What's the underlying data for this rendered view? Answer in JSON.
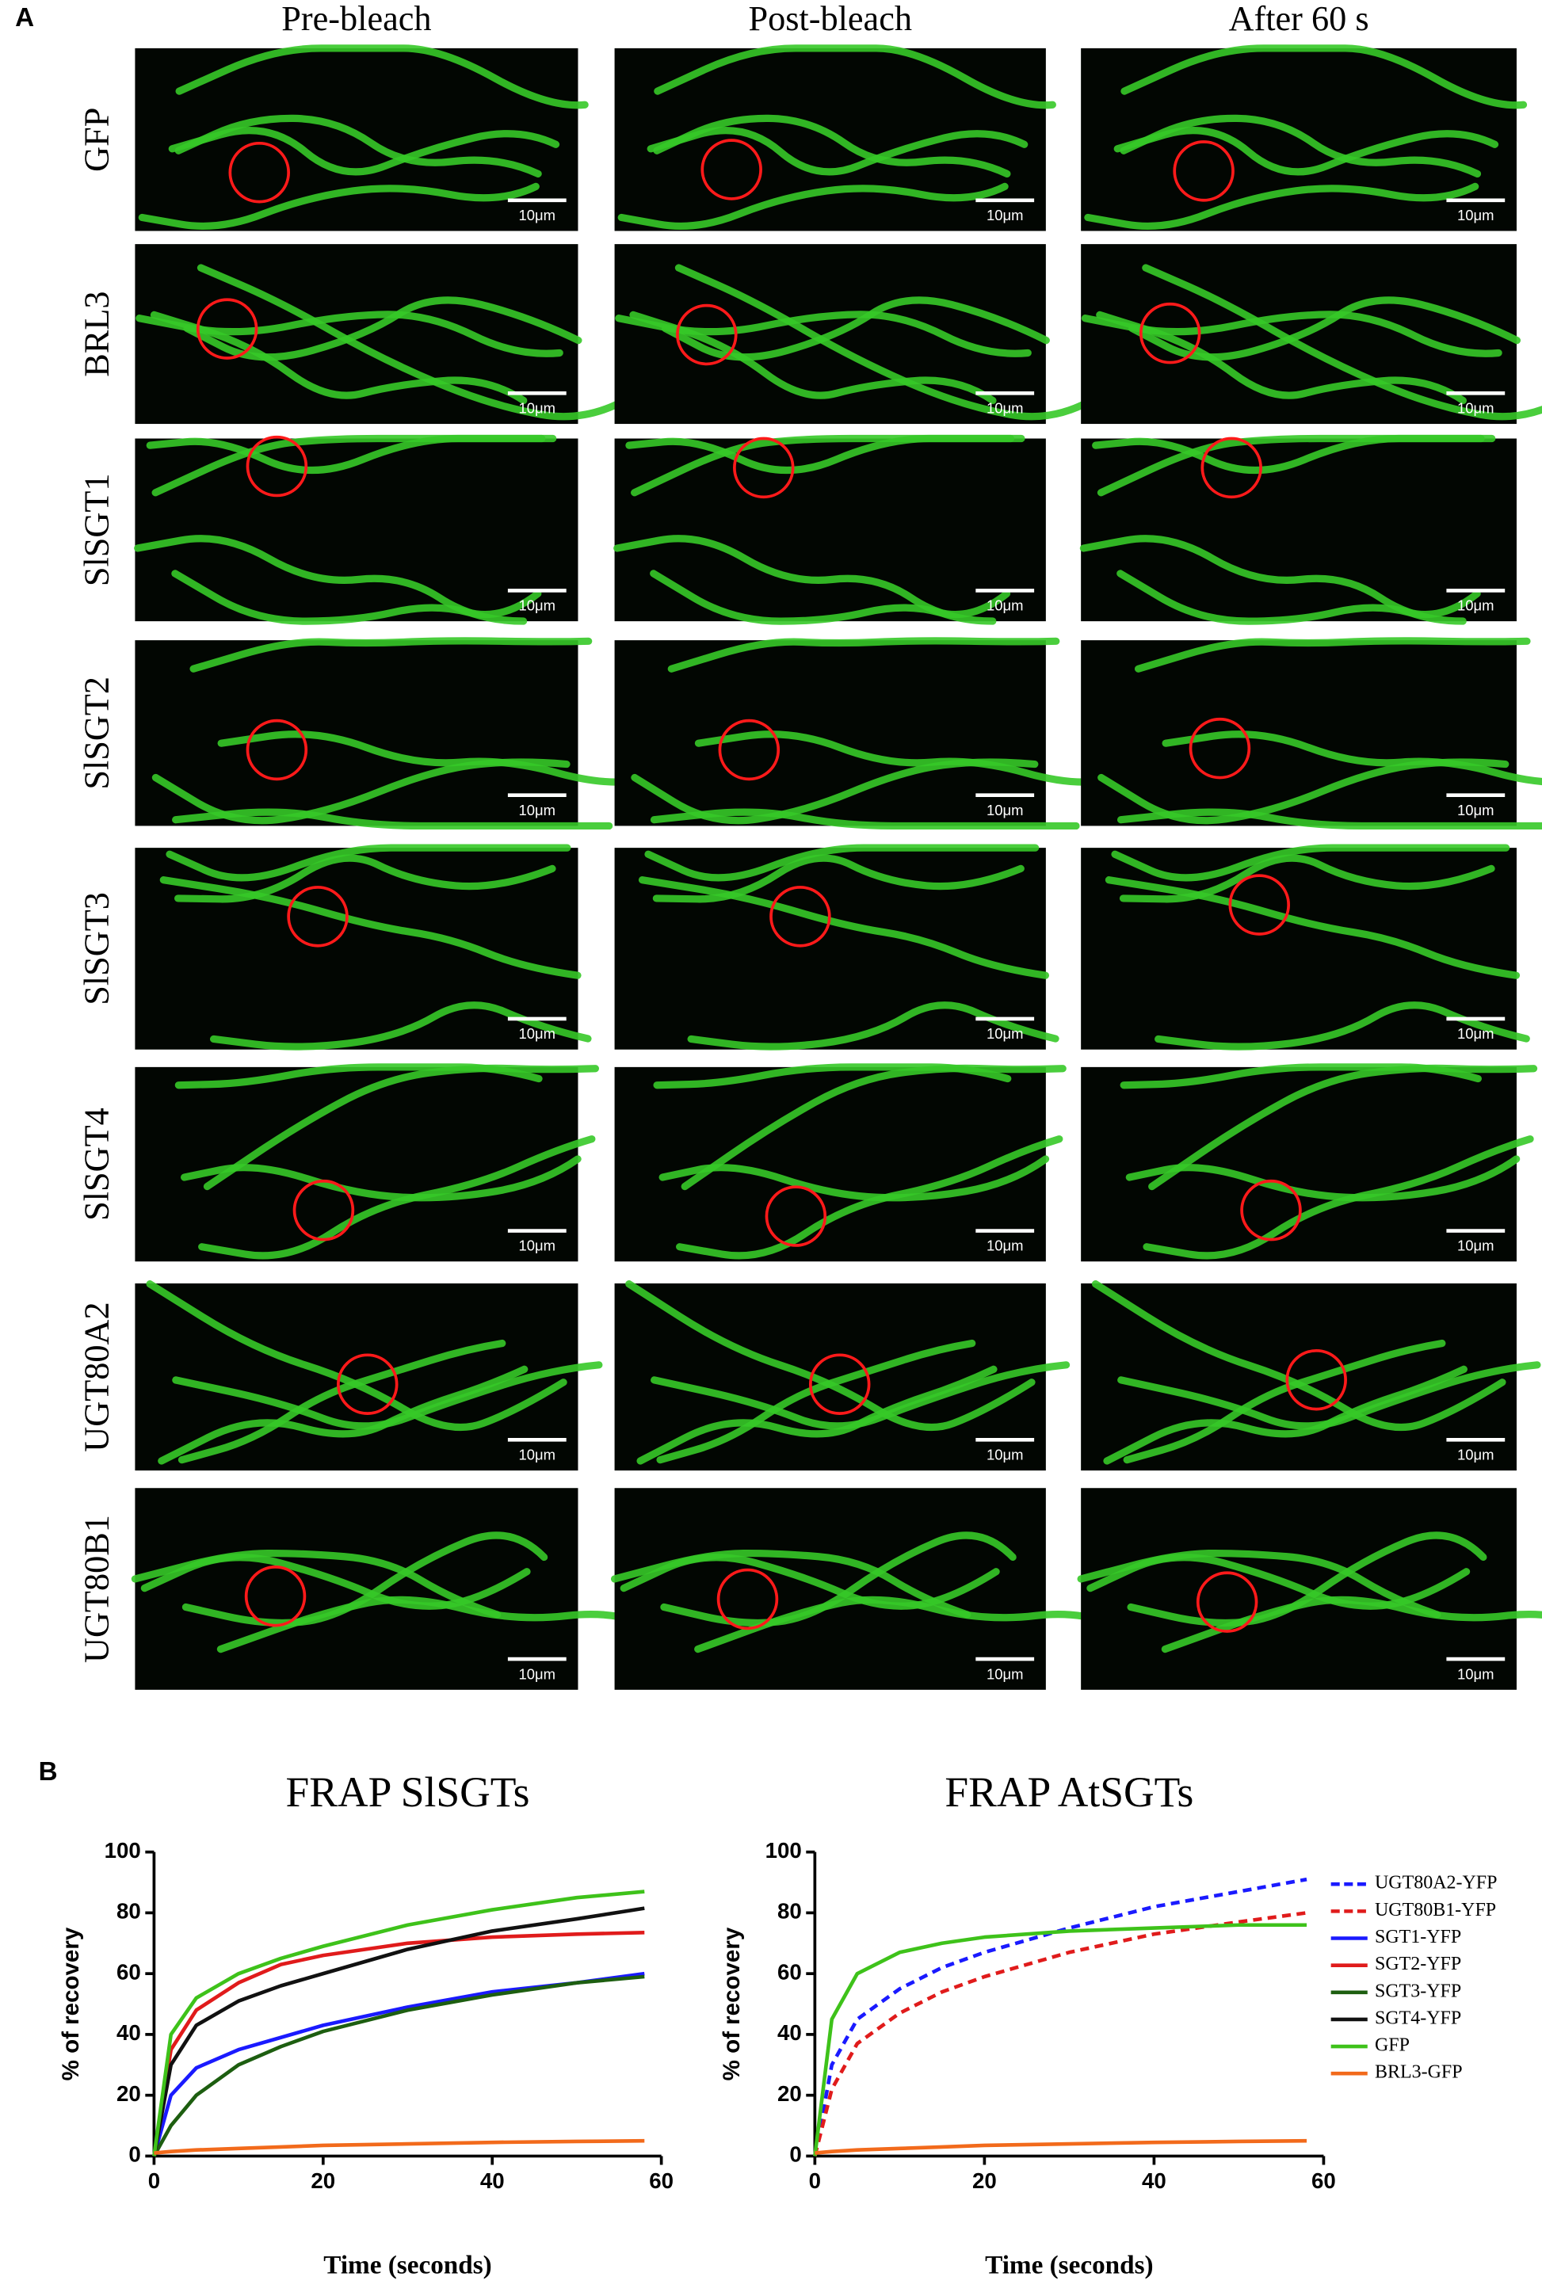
{
  "panel_a": {
    "label": "A",
    "columns": [
      "Pre-bleach",
      "Post-bleach",
      "After 60 s"
    ],
    "rows": [
      "GFP",
      "BRL3",
      "SlSGT1",
      "SlSGT2",
      "SlSGT3",
      "SlSGT4",
      "UGT80A2",
      "UGT80B1"
    ],
    "scale_bar": "10μm"
  },
  "panel_b_label": "B",
  "chart_data": [
    {
      "type": "line",
      "title": "FRAP SlSGTs",
      "xlabel": "Time (seconds)",
      "ylabel": "% of recovery",
      "x": [
        0,
        2,
        5,
        10,
        15,
        20,
        30,
        40,
        50,
        58
      ],
      "xlim": [
        0,
        60
      ],
      "xticks": [
        0,
        20,
        40,
        60
      ],
      "ylim": [
        0,
        100
      ],
      "yticks": [
        0,
        20,
        40,
        60,
        80,
        100
      ],
      "series": [
        {
          "color": "#1a1aff",
          "dash": false,
          "values": [
            0,
            20,
            29,
            35,
            39,
            43,
            49,
            54,
            57,
            60
          ]
        },
        {
          "color": "#e01b1b",
          "dash": false,
          "values": [
            0,
            35,
            48,
            57,
            63,
            66,
            70,
            72,
            73,
            73.5
          ]
        },
        {
          "color": "#1d5e10",
          "dash": false,
          "values": [
            0,
            10,
            20,
            30,
            36,
            41,
            48,
            53,
            57,
            59
          ]
        },
        {
          "color": "#111111",
          "dash": false,
          "values": [
            0,
            30,
            43,
            51,
            56,
            60,
            68,
            74,
            78,
            81.5
          ]
        },
        {
          "color": "#3ec21a",
          "dash": false,
          "values": [
            0,
            40,
            52,
            60,
            65,
            69,
            76,
            81,
            85,
            87
          ]
        },
        {
          "color": "#f26a1b",
          "dash": false,
          "values": [
            1,
            1.5,
            2,
            2.5,
            3,
            3.5,
            4,
            4.5,
            4.8,
            5
          ]
        }
      ]
    },
    {
      "type": "line",
      "title": "FRAP AtSGTs",
      "xlabel": "Time (seconds)",
      "ylabel": "% of recovery",
      "x": [
        0,
        2,
        5,
        10,
        15,
        20,
        30,
        40,
        50,
        58
      ],
      "xlim": [
        0,
        60
      ],
      "xticks": [
        0,
        20,
        40,
        60
      ],
      "ylim": [
        0,
        100
      ],
      "yticks": [
        0,
        20,
        40,
        60,
        80,
        100
      ],
      "series": [
        {
          "color": "#1a1aff",
          "dash": true,
          "values": [
            0,
            30,
            45,
            55,
            62,
            67,
            75,
            82,
            87,
            91
          ]
        },
        {
          "color": "#e01b1b",
          "dash": true,
          "values": [
            0,
            22,
            37,
            47,
            54,
            59,
            67,
            73,
            77,
            80
          ]
        },
        {
          "color": "#3ec21a",
          "dash": false,
          "values": [
            0,
            45,
            60,
            67,
            70,
            72,
            74,
            75,
            76,
            76
          ]
        },
        {
          "color": "#f26a1b",
          "dash": false,
          "values": [
            1,
            1.5,
            2,
            2.5,
            3,
            3.5,
            4,
            4.5,
            4.8,
            5
          ]
        }
      ],
      "legend": [
        {
          "name": "UGT80A2-YFP",
          "color": "#1a1aff",
          "dash": true
        },
        {
          "name": "UGT80B1-YFP",
          "color": "#e01b1b",
          "dash": true
        },
        {
          "name": "SGT1-YFP",
          "color": "#1a1aff",
          "dash": false
        },
        {
          "name": "SGT2-YFP",
          "color": "#e01b1b",
          "dash": false
        },
        {
          "name": "SGT3-YFP",
          "color": "#1d5e10",
          "dash": false
        },
        {
          "name": "SGT4-YFP",
          "color": "#111111",
          "dash": false
        },
        {
          "name": "GFP",
          "color": "#3ec21a",
          "dash": false
        },
        {
          "name": "BRL3-GFP",
          "color": "#f26a1b",
          "dash": false
        }
      ]
    }
  ]
}
